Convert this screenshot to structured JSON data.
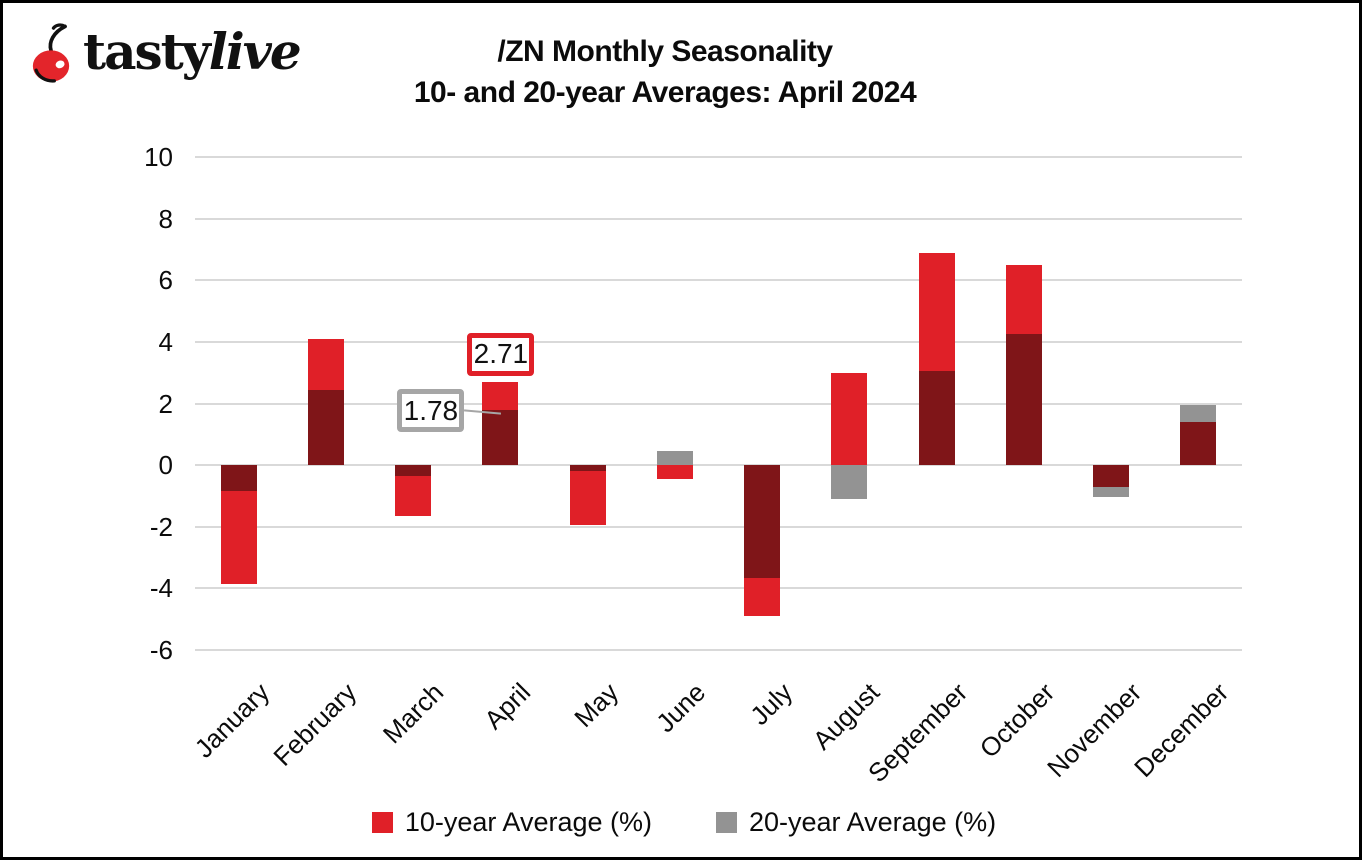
{
  "logo": {
    "brand_part1": "tasty",
    "brand_part2": "live",
    "cherry_color": "#e3252b"
  },
  "title": {
    "line1": "/ZN Monthly Seasonality",
    "line2": "10- and 20-year Averages: April 2024"
  },
  "chart_data": {
    "type": "bar",
    "overlap_style": "overlaid-bars-shared-baseline",
    "categories": [
      "January",
      "February",
      "March",
      "April",
      "May",
      "June",
      "July",
      "August",
      "September",
      "October",
      "November",
      "December"
    ],
    "series": [
      {
        "name": "10-year Average (%)",
        "color": "#e02028",
        "values": [
          -3.85,
          4.1,
          -1.65,
          2.71,
          -1.95,
          -0.45,
          -4.9,
          3.0,
          6.9,
          6.5,
          -0.7,
          1.4
        ]
      },
      {
        "name": "20-year Average (%)",
        "color": "#939393",
        "values": [
          -0.85,
          2.45,
          -0.35,
          1.78,
          -0.2,
          0.45,
          -3.65,
          -1.1,
          3.05,
          4.25,
          -1.05,
          1.95
        ]
      }
    ],
    "overlap_color": "#7f1518",
    "ylim": [
      -6,
      10
    ],
    "ytick_step": 2,
    "yticks": [
      10,
      8,
      6,
      4,
      2,
      0,
      -2,
      -4,
      -6
    ],
    "gridline_color": "#d9d9d9",
    "grid": true,
    "legend_position": "bottom",
    "annotations": [
      {
        "text": "2.71",
        "value": 2.71,
        "month_index": 3,
        "border_color": "#e02028",
        "placement": "above-bar"
      },
      {
        "text": "1.78",
        "value": 1.78,
        "month_index": 3,
        "border_color": "#a6a6a6",
        "placement": "left-with-leader"
      }
    ]
  }
}
